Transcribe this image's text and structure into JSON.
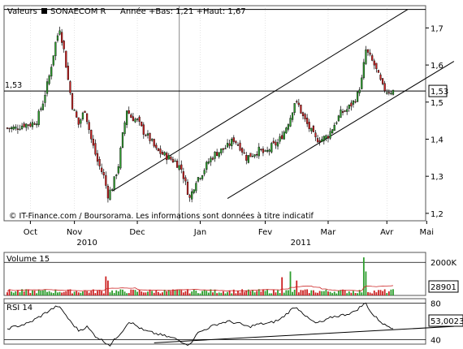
{
  "header": {
    "label": "Valeurs",
    "security": "SONAECOM R",
    "range_text": "Année +Bas: 1,21 +Haut: 1,67"
  },
  "credit": "© IT-Finance.com / Boursorama. Les informations sont données à titre indicatif",
  "colors": {
    "up": "#2e9e2e",
    "down": "#cc2222",
    "line": "#000000",
    "ma": "#cc2222",
    "grid": "#c8c8c8"
  },
  "chart_data": [
    {
      "type": "candlestick",
      "name": "price",
      "ylim": [
        1.18,
        1.76
      ],
      "yticks": [
        {
          "value": 1.2,
          "label": "1,2"
        },
        {
          "value": 1.3,
          "label": "1,3"
        },
        {
          "value": 1.4,
          "label": "1,4"
        },
        {
          "value": 1.5,
          "label": "1,5"
        },
        {
          "value": 1.6,
          "label": "1,6"
        },
        {
          "value": 1.7,
          "label": "1,7"
        }
      ],
      "xlim": [
        0,
        184
      ],
      "month_ticks": [
        {
          "i": 11,
          "label": "Oct"
        },
        {
          "i": 32,
          "label": "Nov"
        },
        {
          "i": 62,
          "label": "Dec"
        },
        {
          "i": 92,
          "label": "Jan"
        },
        {
          "i": 123,
          "label": "Fev"
        },
        {
          "i": 153,
          "label": "Mar"
        },
        {
          "i": 181,
          "label": "Avr"
        },
        {
          "i": 200,
          "label": "Mai"
        }
      ],
      "year_labels": [
        {
          "i": 38,
          "label": "2010"
        },
        {
          "i": 140,
          "label": "2011"
        }
      ],
      "vertical_marker_i": 82,
      "reference_line": {
        "value": 1.53,
        "label": "1,53"
      },
      "resistance_line": {
        "value": 1.75
      },
      "last_price_label": "1,53",
      "channel": {
        "upper": [
          [
            50,
            1.26
          ],
          [
            191,
            1.75
          ]
        ],
        "lower": [
          [
            105,
            1.24
          ],
          [
            213,
            1.61
          ]
        ]
      },
      "anchors": [
        [
          0,
          1.43
        ],
        [
          4,
          1.43
        ],
        [
          8,
          1.44
        ],
        [
          11,
          1.44
        ],
        [
          14,
          1.45
        ],
        [
          17,
          1.5
        ],
        [
          20,
          1.57
        ],
        [
          23,
          1.66
        ],
        [
          25,
          1.7
        ],
        [
          27,
          1.64
        ],
        [
          29,
          1.56
        ],
        [
          31,
          1.49
        ],
        [
          34,
          1.44
        ],
        [
          37,
          1.48
        ],
        [
          40,
          1.4
        ],
        [
          43,
          1.34
        ],
        [
          46,
          1.3
        ],
        [
          48,
          1.25
        ],
        [
          50,
          1.27
        ],
        [
          53,
          1.33
        ],
        [
          55,
          1.41
        ],
        [
          57,
          1.48
        ],
        [
          59,
          1.46
        ],
        [
          62,
          1.45
        ],
        [
          65,
          1.42
        ],
        [
          68,
          1.4
        ],
        [
          71,
          1.37
        ],
        [
          74,
          1.36
        ],
        [
          77,
          1.35
        ],
        [
          80,
          1.34
        ],
        [
          83,
          1.32
        ],
        [
          85,
          1.28
        ],
        [
          87,
          1.24
        ],
        [
          90,
          1.29
        ],
        [
          93,
          1.31
        ],
        [
          96,
          1.34
        ],
        [
          99,
          1.36
        ],
        [
          102,
          1.37
        ],
        [
          105,
          1.38
        ],
        [
          108,
          1.4
        ],
        [
          111,
          1.38
        ],
        [
          114,
          1.35
        ],
        [
          117,
          1.36
        ],
        [
          120,
          1.37
        ],
        [
          123,
          1.36
        ],
        [
          126,
          1.38
        ],
        [
          129,
          1.39
        ],
        [
          132,
          1.42
        ],
        [
          135,
          1.46
        ],
        [
          137,
          1.5
        ],
        [
          139,
          1.49
        ],
        [
          141,
          1.46
        ],
        [
          144,
          1.43
        ],
        [
          147,
          1.4
        ],
        [
          150,
          1.4
        ],
        [
          153,
          1.41
        ],
        [
          156,
          1.44
        ],
        [
          159,
          1.47
        ],
        [
          162,
          1.48
        ],
        [
          165,
          1.5
        ],
        [
          167,
          1.52
        ],
        [
          169,
          1.56
        ],
        [
          171,
          1.64
        ],
        [
          173,
          1.62
        ],
        [
          175,
          1.6
        ],
        [
          177,
          1.57
        ],
        [
          179,
          1.54
        ],
        [
          181,
          1.53
        ],
        [
          184,
          1.53
        ]
      ]
    },
    {
      "type": "bar",
      "name": "volume",
      "title": "Volume 15",
      "ylim": [
        0,
        2600
      ],
      "yticks": [
        {
          "value": 2000,
          "label": "2000K"
        }
      ],
      "last_value_label": "28901",
      "spikes": [
        {
          "i": 47,
          "value": 1150
        },
        {
          "i": 48,
          "value": 900
        },
        {
          "i": 131,
          "value": 1100
        },
        {
          "i": 135,
          "value": 1450
        },
        {
          "i": 138,
          "value": 900
        },
        {
          "i": 170,
          "value": 2300
        },
        {
          "i": 171,
          "value": 1450
        }
      ]
    },
    {
      "type": "line",
      "name": "rsi",
      "title": "RSI 14",
      "ylim": [
        35,
        85
      ],
      "levels": [
        {
          "value": 40,
          "label": "40"
        },
        {
          "value": 80,
          "label": "80"
        }
      ],
      "last_value_label": "53,0023",
      "trendline": [
        [
          70,
          36.5
        ],
        [
          213,
          54.5
        ]
      ],
      "anchors": [
        [
          0,
          52
        ],
        [
          5,
          55
        ],
        [
          10,
          58
        ],
        [
          16,
          66
        ],
        [
          20,
          72
        ],
        [
          24,
          77
        ],
        [
          27,
          70
        ],
        [
          30,
          60
        ],
        [
          34,
          50
        ],
        [
          38,
          54
        ],
        [
          42,
          44
        ],
        [
          46,
          38
        ],
        [
          49,
          34
        ],
        [
          52,
          42
        ],
        [
          55,
          50
        ],
        [
          58,
          60
        ],
        [
          61,
          56
        ],
        [
          65,
          50
        ],
        [
          70,
          47
        ],
        [
          75,
          44
        ],
        [
          80,
          41
        ],
        [
          84,
          37
        ],
        [
          87,
          34
        ],
        [
          90,
          46
        ],
        [
          95,
          52
        ],
        [
          100,
          57
        ],
        [
          105,
          60
        ],
        [
          110,
          58
        ],
        [
          115,
          54
        ],
        [
          120,
          57
        ],
        [
          125,
          58
        ],
        [
          130,
          62
        ],
        [
          134,
          70
        ],
        [
          137,
          76
        ],
        [
          140,
          72
        ],
        [
          143,
          64
        ],
        [
          147,
          58
        ],
        [
          151,
          60
        ],
        [
          155,
          65
        ],
        [
          160,
          67
        ],
        [
          165,
          70
        ],
        [
          169,
          77
        ],
        [
          171,
          80
        ],
        [
          174,
          68
        ],
        [
          177,
          62
        ],
        [
          180,
          56
        ],
        [
          184,
          53
        ]
      ]
    }
  ]
}
